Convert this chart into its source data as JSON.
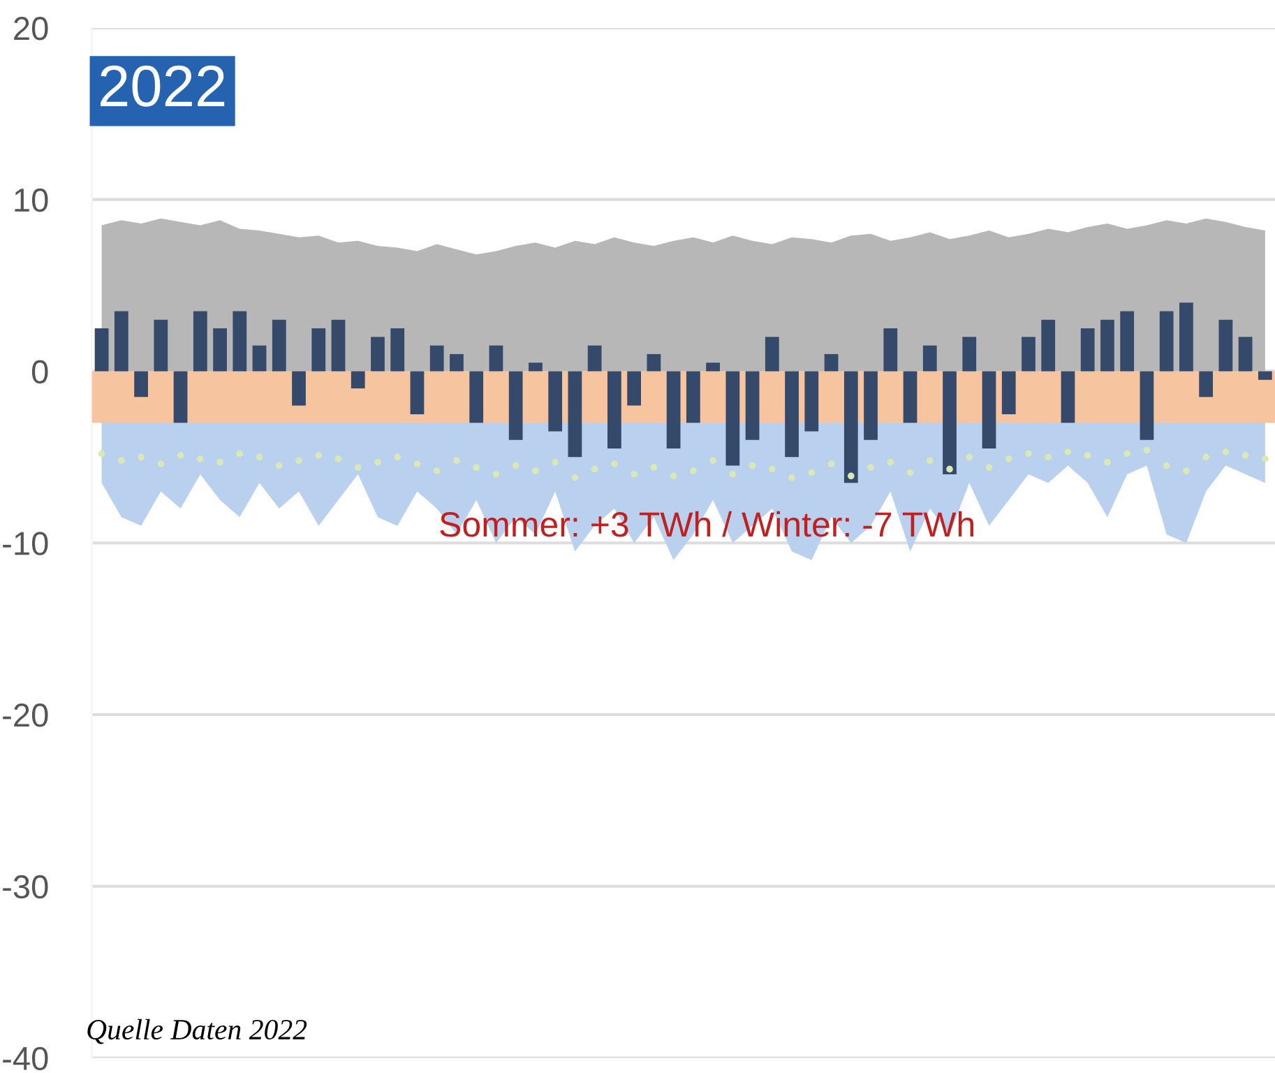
{
  "chart_data": {
    "type": "area",
    "annotations": [
      "2022",
      "Sommer: +3 TWh / Winter: -7 TWh",
      "Quelle Daten 2022"
    ],
    "categories": [
      null,
      null,
      null,
      null,
      null,
      null,
      null,
      null,
      null,
      null,
      null,
      null,
      null,
      null,
      null,
      null,
      null,
      null,
      null,
      null,
      null,
      null,
      null,
      null,
      null,
      null,
      null,
      null,
      null,
      null,
      null,
      null,
      null,
      null,
      null,
      null,
      null,
      null,
      null,
      null,
      null,
      null,
      null,
      null,
      null,
      null,
      null,
      null,
      null,
      null,
      null,
      null,
      null,
      null,
      null,
      null,
      null,
      null,
      null,
      null
    ],
    "ylim": [
      -40,
      20
    ],
    "yticks": [
      -40,
      -30,
      -20,
      -10,
      0,
      10,
      20
    ],
    "grid": "y",
    "tick_labels": "y",
    "bands": [
      {
        "axis": "y",
        "from": -3,
        "to": 0,
        "color": "#f7c4a0"
      }
    ],
    "series": [
      {
        "color": "#b7b7b7",
        "values": [
          8.5,
          8.8,
          8.6,
          8.9,
          8.7,
          8.5,
          8.8,
          8.3,
          8.2,
          8.0,
          7.8,
          7.9,
          7.5,
          7.6,
          7.3,
          7.2,
          7.0,
          7.4,
          7.1,
          6.8,
          7.0,
          7.3,
          7.5,
          7.2,
          7.6,
          7.4,
          7.8,
          7.5,
          7.3,
          7.6,
          7.8,
          7.5,
          7.9,
          7.6,
          7.4,
          7.8,
          7.7,
          7.5,
          7.9,
          8.0,
          7.6,
          7.8,
          8.1,
          7.7,
          7.9,
          8.2,
          7.8,
          8.0,
          8.3,
          8.1,
          8.4,
          8.6,
          8.3,
          8.5,
          8.8,
          8.6,
          8.9,
          8.7,
          8.4,
          8.2
        ]
      },
      {
        "color": "#b9d0ee",
        "values": [
          -6.5,
          -8.5,
          -9.0,
          -7.0,
          -8.0,
          -6.0,
          -7.5,
          -8.5,
          -6.5,
          -8.0,
          -7.0,
          -9.0,
          -7.5,
          -6.0,
          -8.5,
          -9.0,
          -7.0,
          -8.0,
          -9.5,
          -7.5,
          -10.0,
          -8.5,
          -9.5,
          -7.0,
          -10.5,
          -9.0,
          -8.0,
          -10.0,
          -8.5,
          -11.0,
          -9.5,
          -7.5,
          -10.0,
          -9.0,
          -8.0,
          -10.5,
          -11.0,
          -8.5,
          -10.0,
          -9.0,
          -7.0,
          -10.5,
          -8.0,
          -9.5,
          -6.5,
          -9.0,
          -7.5,
          -6.0,
          -6.5,
          -5.5,
          -6.5,
          -8.5,
          -6.0,
          -5.5,
          -9.5,
          -10.0,
          -7.0,
          -5.5,
          -6.0,
          -6.5
        ]
      },
      {
        "type": "bar",
        "color": "#354a6b",
        "values": [
          2.5,
          3.5,
          -1.5,
          3.0,
          -3.0,
          3.5,
          2.5,
          3.5,
          1.5,
          3.0,
          -2.0,
          2.5,
          3.0,
          -1.0,
          2.0,
          2.5,
          -2.5,
          1.5,
          1.0,
          -3.0,
          1.5,
          -4.0,
          0.5,
          -3.5,
          -5.0,
          1.5,
          -4.5,
          -2.0,
          1.0,
          -4.5,
          -3.0,
          0.5,
          -5.5,
          -4.0,
          2.0,
          -5.0,
          -3.5,
          1.0,
          -6.5,
          -4.0,
          2.5,
          -3.0,
          1.5,
          -6.0,
          2.0,
          -4.5,
          -2.5,
          2.0,
          3.0,
          -3.0,
          2.5,
          3.0,
          3.5,
          -4.0,
          3.5,
          4.0,
          -1.5,
          3.0,
          2.0,
          -0.5
        ]
      },
      {
        "type": "scatter",
        "marker": "circle",
        "color": "#d9e8b4",
        "values": [
          -4.8,
          -5.2,
          -5.0,
          -5.4,
          -4.9,
          -5.1,
          -5.3,
          -4.8,
          -5.0,
          -5.5,
          -5.2,
          -4.9,
          -5.1,
          -5.6,
          -5.3,
          -5.0,
          -5.4,
          -5.8,
          -5.2,
          -5.6,
          -6.0,
          -5.5,
          -5.8,
          -5.3,
          -6.2,
          -5.7,
          -5.4,
          -6.0,
          -5.6,
          -6.1,
          -5.8,
          -5.2,
          -6.0,
          -5.5,
          -5.7,
          -6.2,
          -5.9,
          -5.4,
          -6.1,
          -5.6,
          -5.3,
          -5.9,
          -5.2,
          -5.7,
          -5.0,
          -5.6,
          -5.1,
          -4.8,
          -5.0,
          -4.7,
          -4.9,
          -5.3,
          -4.8,
          -4.6,
          -5.5,
          -5.8,
          -5.0,
          -4.7,
          -4.9,
          -5.1
        ]
      }
    ]
  }
}
